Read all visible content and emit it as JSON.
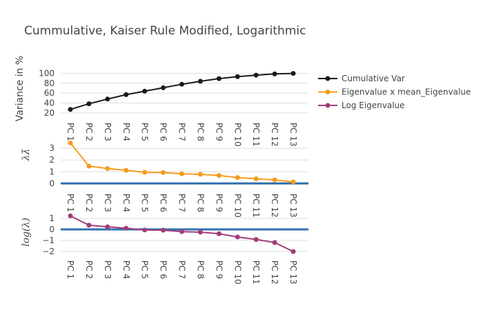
{
  "title": "Cummulative, Kaiser Rule Modified, Logarithmic",
  "chart_data": [
    {
      "type": "line",
      "ylabel": "Variance in %",
      "categories": [
        "PC 1",
        "PC 2",
        "PC 3",
        "PC 4",
        "PC 5",
        "PC 6",
        "PC 7",
        "PC 8",
        "PC 9",
        "PC 10",
        "PC 11",
        "PC 12",
        "PC 13"
      ],
      "yticks": [
        20,
        40,
        60,
        80,
        100
      ],
      "ylim": [
        17,
        105
      ],
      "grid": true,
      "series": [
        {
          "name": "Cumulative Var",
          "color": "#1a1a1a",
          "values": [
            27,
            38.5,
            48,
            57,
            64,
            71,
            78,
            84,
            89.5,
            93.5,
            96.5,
            99,
            100
          ]
        }
      ]
    },
    {
      "type": "line",
      "ylabel": "λλ̄",
      "categories": [
        "PC 1",
        "PC 2",
        "PC 3",
        "PC 4",
        "PC 5",
        "PC 6",
        "PC 7",
        "PC 8",
        "PC 9",
        "PC 10",
        "PC 11",
        "PC 12",
        "PC 13"
      ],
      "yticks": [
        0,
        1,
        2,
        3
      ],
      "ylim": [
        -0.1,
        3.6
      ],
      "grid": true,
      "zeroline": true,
      "series": [
        {
          "name": "Eigenvalue x mean_Eigenvalue",
          "color": "#f59b1c",
          "values": [
            3.45,
            1.48,
            1.27,
            1.12,
            0.95,
            0.93,
            0.82,
            0.78,
            0.68,
            0.5,
            0.4,
            0.3,
            0.13
          ]
        }
      ]
    },
    {
      "type": "line",
      "ylabel": "log(λ)",
      "categories": [
        "PC 1",
        "PC 2",
        "PC 3",
        "PC 4",
        "PC 5",
        "PC 6",
        "PC 7",
        "PC 8",
        "PC 9",
        "PC 10",
        "PC 11",
        "PC 12",
        "PC 13"
      ],
      "yticks": [
        -2,
        -1,
        0,
        1
      ],
      "ylim": [
        -2.2,
        1.45
      ],
      "grid": true,
      "zeroline": true,
      "series": [
        {
          "name": "Log Eigenvalue",
          "color": "#a13d7a",
          "values": [
            1.24,
            0.39,
            0.24,
            0.11,
            -0.05,
            -0.07,
            -0.2,
            -0.25,
            -0.39,
            -0.69,
            -0.92,
            -1.2,
            -2.02
          ]
        }
      ]
    }
  ],
  "legend": {
    "position": "top-right",
    "items": [
      {
        "label": "Cumulative Var",
        "color": "#1a1a1a"
      },
      {
        "label": "Eigenvalue x mean_Eigenvalue",
        "color": "#f59b1c"
      },
      {
        "label": "Log Eigenvalue",
        "color": "#a13d7a"
      }
    ]
  }
}
